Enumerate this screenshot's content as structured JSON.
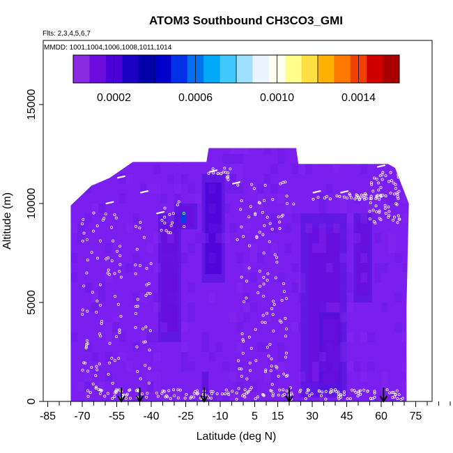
{
  "chart_data": {
    "type": "heatmap",
    "title": "ATOM3 Southbound CH3CO3_GMI",
    "notes": [
      "Flts: 2,3,4,5,6,7",
      "MMDD: 1001,1004,1006,1008,1011,1014"
    ],
    "xlabel": "Latitude (deg N)",
    "ylabel": "Altitude (m)",
    "xlim": [
      -85,
      90
    ],
    "ylim": [
      0,
      17500
    ],
    "x_ticks": [
      -85,
      -70,
      -55,
      -40,
      -25,
      -10,
      5,
      15,
      30,
      45,
      60,
      75
    ],
    "x_tick_labels": [
      "-85",
      "-70",
      "-55",
      "-40",
      "-25",
      "-10",
      "5",
      "15",
      "30",
      "45",
      "60",
      "75"
    ],
    "y_ticks": [
      0,
      5000,
      10000,
      15000
    ],
    "y_tick_labels": [
      "0",
      "5000",
      "10000",
      "15000"
    ],
    "colorbar": {
      "range": [
        0,
        0.0016
      ],
      "ticks": [
        0.0002,
        0.0006,
        0.001,
        0.0014
      ],
      "tick_labels": [
        "0.0002",
        "0.0006",
        "0.0010",
        "0.0014"
      ],
      "colors": [
        "#8a2be2",
        "#6a0dde",
        "#4b00d8",
        "#1a00c0",
        "#0000a8",
        "#0000c8",
        "#0030e8",
        "#0070f0",
        "#00a8f8",
        "#40c8ff",
        "#a0e0ff",
        "#e8f4ff",
        "#fffff0",
        "#ffff90",
        "#ffe040",
        "#ffb000",
        "#ff7800",
        "#f04000",
        "#d00000",
        "#a80000"
      ]
    },
    "field_colors": {
      "background": "#7a1ff0",
      "mid": "#4c10d8",
      "low": "#1a0bbd",
      "min": "#0a0aa8",
      "cell_edge": "#6a18e8"
    },
    "field_extent": [
      {
        "lat": -75,
        "top": 9900
      },
      {
        "lat": -66,
        "top": 10900
      },
      {
        "lat": -58,
        "top": 11300
      },
      {
        "lat": -48,
        "top": 12100
      },
      {
        "lat": -34,
        "top": 12100
      },
      {
        "lat": -16,
        "top": 12100
      },
      {
        "lat": -15,
        "top": 12800
      },
      {
        "lat": 23,
        "top": 12800
      },
      {
        "lat": 24,
        "top": 12000
      },
      {
        "lat": 63,
        "top": 12000
      },
      {
        "lat": 66,
        "top": 11800
      },
      {
        "lat": 72,
        "top": 10000
      },
      {
        "lat": 71,
        "top": 4800
      }
    ],
    "low_regions": [
      {
        "lat": [
          -37,
          -27
        ],
        "alt": [
          3000,
          9500
        ],
        "level": 0.00014
      },
      {
        "lat": [
          -30,
          -20
        ],
        "alt": [
          8700,
          10000
        ],
        "level": 0.00012
      },
      {
        "lat": [
          -18,
          -8
        ],
        "alt": [
          6000,
          11500
        ],
        "level": 0.00016
      },
      {
        "lat": [
          25,
          45
        ],
        "alt": [
          200,
          9500
        ],
        "level": 0.00012
      },
      {
        "lat": [
          33,
          43
        ],
        "alt": [
          500,
          4500
        ],
        "level": 0.0001
      },
      {
        "lat": [
          48,
          56
        ],
        "alt": [
          5000,
          9500
        ],
        "level": 0.00015
      },
      {
        "lat": [
          -18,
          -15
        ],
        "alt": [
          0,
          1500
        ],
        "level": 0.0001
      }
    ],
    "obs_arrows_lat": [
      -53,
      -45,
      -17,
      20,
      61
    ],
    "flight_track_segments": [
      {
        "lat": [
          -70,
          -53
        ],
        "alt": [
          300,
          9800
        ]
      },
      {
        "lat": [
          -47,
          -40
        ],
        "alt": [
          500,
          9300
        ]
      },
      {
        "lat": [
          -38,
          -25
        ],
        "alt": [
          8500,
          10200
        ]
      },
      {
        "lat": [
          -16,
          -5
        ],
        "alt": [
          11200,
          11800
        ]
      },
      {
        "lat": [
          -3,
          22
        ],
        "alt": [
          400,
          11200
        ]
      },
      {
        "lat": [
          30,
          60
        ],
        "alt": [
          10200,
          10500
        ]
      },
      {
        "lat": [
          55,
          68
        ],
        "alt": [
          9000,
          11700
        ]
      },
      {
        "lat": [
          -68,
          70
        ],
        "alt": [
          100,
          600
        ]
      }
    ]
  }
}
